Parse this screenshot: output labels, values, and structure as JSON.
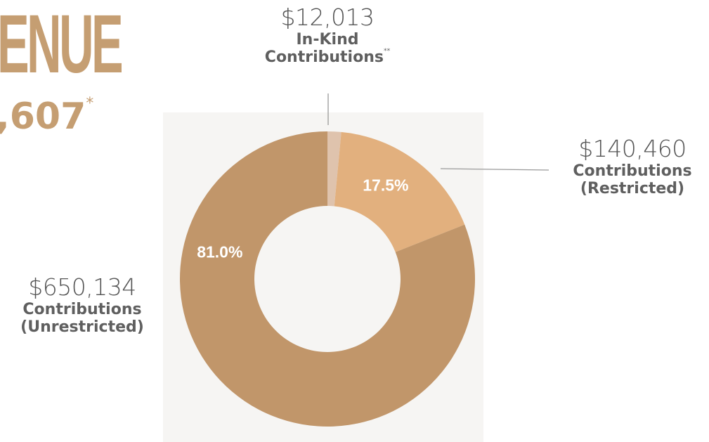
{
  "header": {
    "title": "ENUE",
    "total": ",607",
    "total_note": "*"
  },
  "colors": {
    "brand": "#c59e72",
    "unrestricted": "#c1966a",
    "restricted": "#e2b07e",
    "in_kind": "#dfc3ad",
    "leader_line": "#999999",
    "percent_label": "#ffffff"
  },
  "chart_data": {
    "type": "pie",
    "donut": true,
    "title": "",
    "slices": [
      {
        "key": "in_kind",
        "amount": "$12,013",
        "label": "In-Kind",
        "label_line2": "Contributions",
        "note": "**",
        "value": 12013,
        "percent_label": ""
      },
      {
        "key": "restricted",
        "amount": "$140,460",
        "label": "Contributions",
        "label_line2": "(Restricted)",
        "note": "",
        "value": 140460,
        "percent_label": "17.5%"
      },
      {
        "key": "unrestricted",
        "amount": "$650,134",
        "label": "Contributions",
        "label_line2": "(Unrestricted)",
        "note": "",
        "value": 650134,
        "percent_label": "81.0%"
      }
    ]
  }
}
